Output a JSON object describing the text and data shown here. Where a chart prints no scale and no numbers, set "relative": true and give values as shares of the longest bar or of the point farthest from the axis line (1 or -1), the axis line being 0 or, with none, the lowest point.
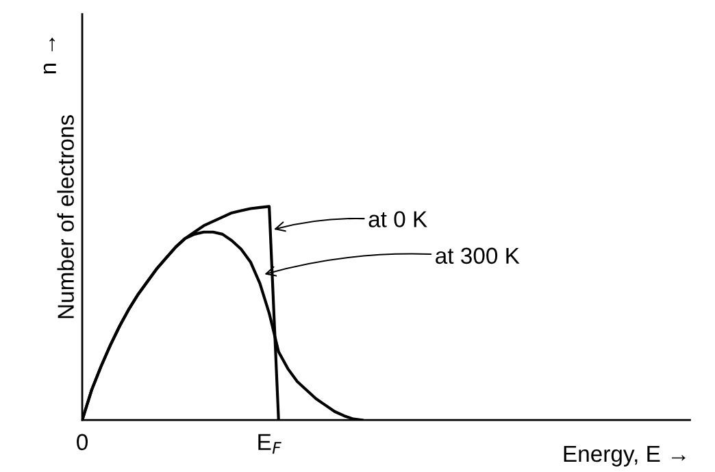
{
  "chart_data": {
    "type": "line",
    "relative": true,
    "xlabel": "Energy, E →",
    "ylabel": "Number of electrons",
    "tick_labels": "x",
    "categories": [
      "0",
      null,
      null,
      null,
      null,
      null,
      null,
      null,
      null,
      null,
      null,
      null,
      null,
      null,
      null,
      null,
      null,
      null,
      null,
      null,
      "E$_{F}$",
      null,
      null,
      null,
      null,
      null,
      null,
      null,
      null,
      null,
      null,
      null,
      null,
      null,
      null,
      null,
      null,
      null,
      null,
      null,
      null,
      null,
      null,
      null,
      null,
      null,
      null,
      null,
      null,
      null,
      null,
      null,
      null,
      null,
      null,
      null,
      null,
      null,
      null,
      null,
      null,
      null,
      null,
      null,
      null,
      null
    ],
    "series": [
      {
        "color": "#000000",
        "values": [
          0,
          0.14,
          0.25,
          0.35,
          0.44,
          0.52,
          0.59,
          0.65,
          0.71,
          0.76,
          0.81,
          0.85,
          0.88,
          0.91,
          0.93,
          0.95,
          0.97,
          0.98,
          0.99,
          0.995,
          1.0,
          0,
          null,
          null,
          null,
          null,
          null,
          null,
          null,
          null,
          null,
          null,
          null,
          null,
          null,
          null,
          null,
          null,
          null,
          null,
          null,
          null,
          null,
          null,
          null,
          null,
          null,
          null,
          null,
          null,
          null,
          null,
          null,
          null,
          null,
          null,
          null,
          null,
          null,
          null,
          null,
          null,
          null,
          null,
          null,
          null
        ]
      },
      {
        "color": "#000000",
        "values": [
          0,
          0.14,
          0.25,
          0.35,
          0.44,
          0.52,
          0.59,
          0.65,
          0.71,
          0.76,
          0.81,
          0.85,
          0.87,
          0.88,
          0.88,
          0.87,
          0.84,
          0.8,
          0.74,
          0.64,
          0.5,
          0.32,
          0.24,
          0.18,
          0.14,
          0.1,
          0.07,
          0.04,
          0.02,
          0.005,
          0,
          null,
          null,
          null,
          null,
          null,
          null,
          null,
          null,
          null,
          null,
          null,
          null,
          null,
          null,
          null,
          null,
          null,
          null,
          null,
          null,
          null,
          null,
          null,
          null,
          null,
          null,
          null,
          null,
          null,
          null,
          null,
          null,
          null,
          null,
          null
        ]
      }
    ],
    "annotations": [
      "n →",
      "at 0 K",
      "at 300 K"
    ],
    "marker": "none",
    "line_style": "solid",
    "grid": false,
    "legend": false
  }
}
